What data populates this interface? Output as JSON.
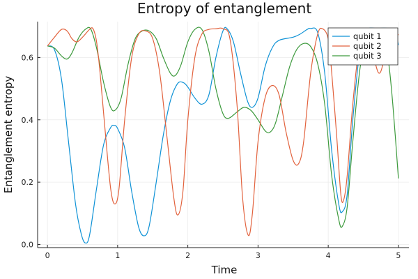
{
  "chart_data": {
    "type": "line",
    "title": "Entropy of entanglement",
    "xlabel": "Time",
    "ylabel": "Entanglement entropy",
    "xlim": [
      -0.14,
      5.15
    ],
    "ylim": [
      -0.01,
      0.715
    ],
    "xticks": [
      0,
      1,
      2,
      3,
      4,
      5
    ],
    "yticks": [
      0.0,
      0.2,
      0.4,
      0.6
    ],
    "ytick_labels": [
      "0.0",
      "0.2",
      "0.4",
      "0.6"
    ],
    "grid": true,
    "legend_position": "top-right",
    "series": [
      {
        "name": "qubit 1",
        "color": "#0f92d6",
        "points": [
          [
            0.0,
            0.637
          ],
          [
            0.1,
            0.625
          ],
          [
            0.2,
            0.53
          ],
          [
            0.3,
            0.33
          ],
          [
            0.4,
            0.13
          ],
          [
            0.48,
            0.035
          ],
          [
            0.54,
            0.005
          ],
          [
            0.6,
            0.03
          ],
          [
            0.7,
            0.18
          ],
          [
            0.8,
            0.32
          ],
          [
            0.9,
            0.375
          ],
          [
            0.95,
            0.382
          ],
          [
            1.0,
            0.372
          ],
          [
            1.1,
            0.31
          ],
          [
            1.2,
            0.17
          ],
          [
            1.3,
            0.055
          ],
          [
            1.38,
            0.028
          ],
          [
            1.45,
            0.06
          ],
          [
            1.55,
            0.2
          ],
          [
            1.65,
            0.35
          ],
          [
            1.75,
            0.46
          ],
          [
            1.85,
            0.515
          ],
          [
            1.93,
            0.52
          ],
          [
            2.0,
            0.505
          ],
          [
            2.1,
            0.47
          ],
          [
            2.2,
            0.45
          ],
          [
            2.3,
            0.48
          ],
          [
            2.4,
            0.6
          ],
          [
            2.5,
            0.685
          ],
          [
            2.56,
            0.692
          ],
          [
            2.65,
            0.65
          ],
          [
            2.75,
            0.55
          ],
          [
            2.85,
            0.46
          ],
          [
            2.92,
            0.44
          ],
          [
            3.0,
            0.47
          ],
          [
            3.1,
            0.57
          ],
          [
            3.2,
            0.63
          ],
          [
            3.3,
            0.655
          ],
          [
            3.5,
            0.665
          ],
          [
            3.6,
            0.675
          ],
          [
            3.7,
            0.69
          ],
          [
            3.75,
            0.693
          ],
          [
            3.85,
            0.68
          ],
          [
            3.95,
            0.55
          ],
          [
            4.05,
            0.3
          ],
          [
            4.15,
            0.13
          ],
          [
            4.2,
            0.105
          ],
          [
            4.27,
            0.16
          ],
          [
            4.35,
            0.4
          ],
          [
            4.45,
            0.62
          ],
          [
            4.55,
            0.688
          ],
          [
            4.7,
            0.693
          ],
          [
            4.85,
            0.693
          ],
          [
            4.95,
            0.68
          ],
          [
            5.0,
            0.64
          ]
        ]
      },
      {
        "name": "qubit 2",
        "color": "#e2623d",
        "points": [
          [
            0.0,
            0.637
          ],
          [
            0.1,
            0.665
          ],
          [
            0.2,
            0.69
          ],
          [
            0.28,
            0.685
          ],
          [
            0.35,
            0.66
          ],
          [
            0.42,
            0.65
          ],
          [
            0.5,
            0.665
          ],
          [
            0.6,
            0.69
          ],
          [
            0.65,
            0.692
          ],
          [
            0.7,
            0.65
          ],
          [
            0.75,
            0.55
          ],
          [
            0.82,
            0.37
          ],
          [
            0.9,
            0.18
          ],
          [
            0.96,
            0.13
          ],
          [
            1.02,
            0.18
          ],
          [
            1.1,
            0.4
          ],
          [
            1.2,
            0.6
          ],
          [
            1.3,
            0.675
          ],
          [
            1.4,
            0.685
          ],
          [
            1.5,
            0.66
          ],
          [
            1.6,
            0.55
          ],
          [
            1.7,
            0.35
          ],
          [
            1.8,
            0.15
          ],
          [
            1.86,
            0.095
          ],
          [
            1.93,
            0.17
          ],
          [
            2.0,
            0.4
          ],
          [
            2.1,
            0.6
          ],
          [
            2.2,
            0.675
          ],
          [
            2.3,
            0.69
          ],
          [
            2.4,
            0.692
          ],
          [
            2.5,
            0.692
          ],
          [
            2.6,
            0.66
          ],
          [
            2.7,
            0.45
          ],
          [
            2.78,
            0.15
          ],
          [
            2.86,
            0.03
          ],
          [
            2.92,
            0.1
          ],
          [
            3.0,
            0.33
          ],
          [
            3.1,
            0.47
          ],
          [
            3.2,
            0.51
          ],
          [
            3.3,
            0.48
          ],
          [
            3.4,
            0.36
          ],
          [
            3.5,
            0.27
          ],
          [
            3.58,
            0.26
          ],
          [
            3.65,
            0.33
          ],
          [
            3.75,
            0.55
          ],
          [
            3.85,
            0.675
          ],
          [
            3.92,
            0.692
          ],
          [
            4.0,
            0.66
          ],
          [
            4.05,
            0.55
          ],
          [
            4.12,
            0.35
          ],
          [
            4.18,
            0.16
          ],
          [
            4.22,
            0.143
          ],
          [
            4.27,
            0.22
          ],
          [
            4.35,
            0.45
          ],
          [
            4.45,
            0.65
          ],
          [
            4.55,
            0.69
          ],
          [
            4.65,
            0.6
          ],
          [
            4.72,
            0.55
          ],
          [
            4.78,
            0.58
          ],
          [
            4.85,
            0.68
          ],
          [
            4.92,
            0.692
          ],
          [
            5.0,
            0.672
          ]
        ]
      },
      {
        "name": "qubit 3",
        "color": "#3d9a3d",
        "points": [
          [
            0.0,
            0.637
          ],
          [
            0.1,
            0.63
          ],
          [
            0.2,
            0.605
          ],
          [
            0.28,
            0.595
          ],
          [
            0.35,
            0.615
          ],
          [
            0.45,
            0.665
          ],
          [
            0.55,
            0.692
          ],
          [
            0.62,
            0.69
          ],
          [
            0.7,
            0.63
          ],
          [
            0.8,
            0.52
          ],
          [
            0.9,
            0.44
          ],
          [
            0.97,
            0.432
          ],
          [
            1.05,
            0.47
          ],
          [
            1.15,
            0.58
          ],
          [
            1.25,
            0.66
          ],
          [
            1.35,
            0.685
          ],
          [
            1.45,
            0.685
          ],
          [
            1.55,
            0.66
          ],
          [
            1.65,
            0.6
          ],
          [
            1.75,
            0.55
          ],
          [
            1.82,
            0.542
          ],
          [
            1.9,
            0.575
          ],
          [
            2.0,
            0.65
          ],
          [
            2.1,
            0.69
          ],
          [
            2.2,
            0.69
          ],
          [
            2.3,
            0.62
          ],
          [
            2.4,
            0.5
          ],
          [
            2.5,
            0.42
          ],
          [
            2.58,
            0.405
          ],
          [
            2.7,
            0.425
          ],
          [
            2.8,
            0.44
          ],
          [
            2.9,
            0.43
          ],
          [
            3.0,
            0.4
          ],
          [
            3.1,
            0.365
          ],
          [
            3.17,
            0.36
          ],
          [
            3.25,
            0.39
          ],
          [
            3.35,
            0.48
          ],
          [
            3.45,
            0.57
          ],
          [
            3.55,
            0.625
          ],
          [
            3.65,
            0.645
          ],
          [
            3.75,
            0.635
          ],
          [
            3.85,
            0.58
          ],
          [
            3.95,
            0.45
          ],
          [
            4.05,
            0.22
          ],
          [
            4.15,
            0.08
          ],
          [
            4.2,
            0.058
          ],
          [
            4.27,
            0.12
          ],
          [
            4.35,
            0.33
          ],
          [
            4.45,
            0.56
          ],
          [
            4.55,
            0.67
          ],
          [
            4.65,
            0.69
          ],
          [
            4.75,
            0.68
          ],
          [
            4.85,
            0.6
          ],
          [
            4.92,
            0.45
          ],
          [
            5.0,
            0.212
          ]
        ]
      }
    ]
  }
}
